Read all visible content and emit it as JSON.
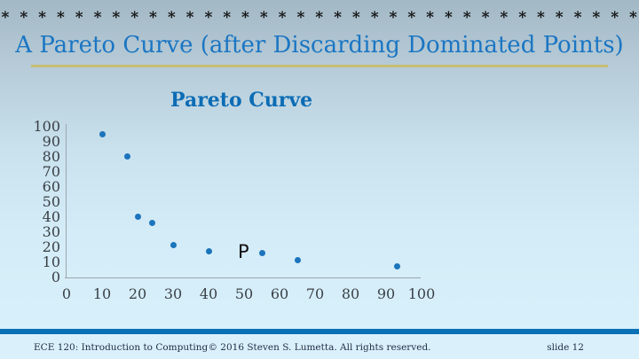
{
  "slide": {
    "decoration_asterisks": "* * * * * * * * * * * * * * * * * * * * * * * * * * * * * * * * * * *",
    "title": "A Pareto Curve (after Discarding Dominated Points)",
    "footer_left": "ECE 120: Introduction to Computing",
    "footer_center": "© 2016 Steven S. Lumetta.  All rights reserved.",
    "slide_number": "slide 12"
  },
  "colors": {
    "title_blue": "#1b76c3",
    "chart_title_blue": "#0c6cb5",
    "underline_gold": "#c8bd75",
    "point_blue": "#1b74bc",
    "axis_line_gray": "#9da6ad",
    "axis_text_gray": "#3a4047",
    "footer_stripe_blue": "#0b71b6",
    "footer_background": "#daf1fc",
    "background_top": "#a3b8c5",
    "background_bottom": "#d9f1fb"
  },
  "chart_data": {
    "type": "scatter",
    "title": "Pareto Curve",
    "x": [
      10,
      17,
      20,
      24,
      30,
      40,
      55,
      65,
      93
    ],
    "y": [
      95,
      80,
      40,
      36,
      21,
      17,
      16,
      11,
      7
    ],
    "point_label": {
      "text": "P",
      "x": 55,
      "y": 16
    },
    "xlabel": "",
    "ylabel": "",
    "xlim": [
      0,
      100
    ],
    "ylim": [
      0,
      100
    ],
    "x_ticks": [
      0,
      10,
      20,
      30,
      40,
      50,
      60,
      70,
      80,
      90,
      100
    ],
    "y_ticks": [
      0,
      10,
      20,
      30,
      40,
      50,
      60,
      70,
      80,
      90,
      100
    ],
    "grid": false,
    "legend": "none"
  }
}
